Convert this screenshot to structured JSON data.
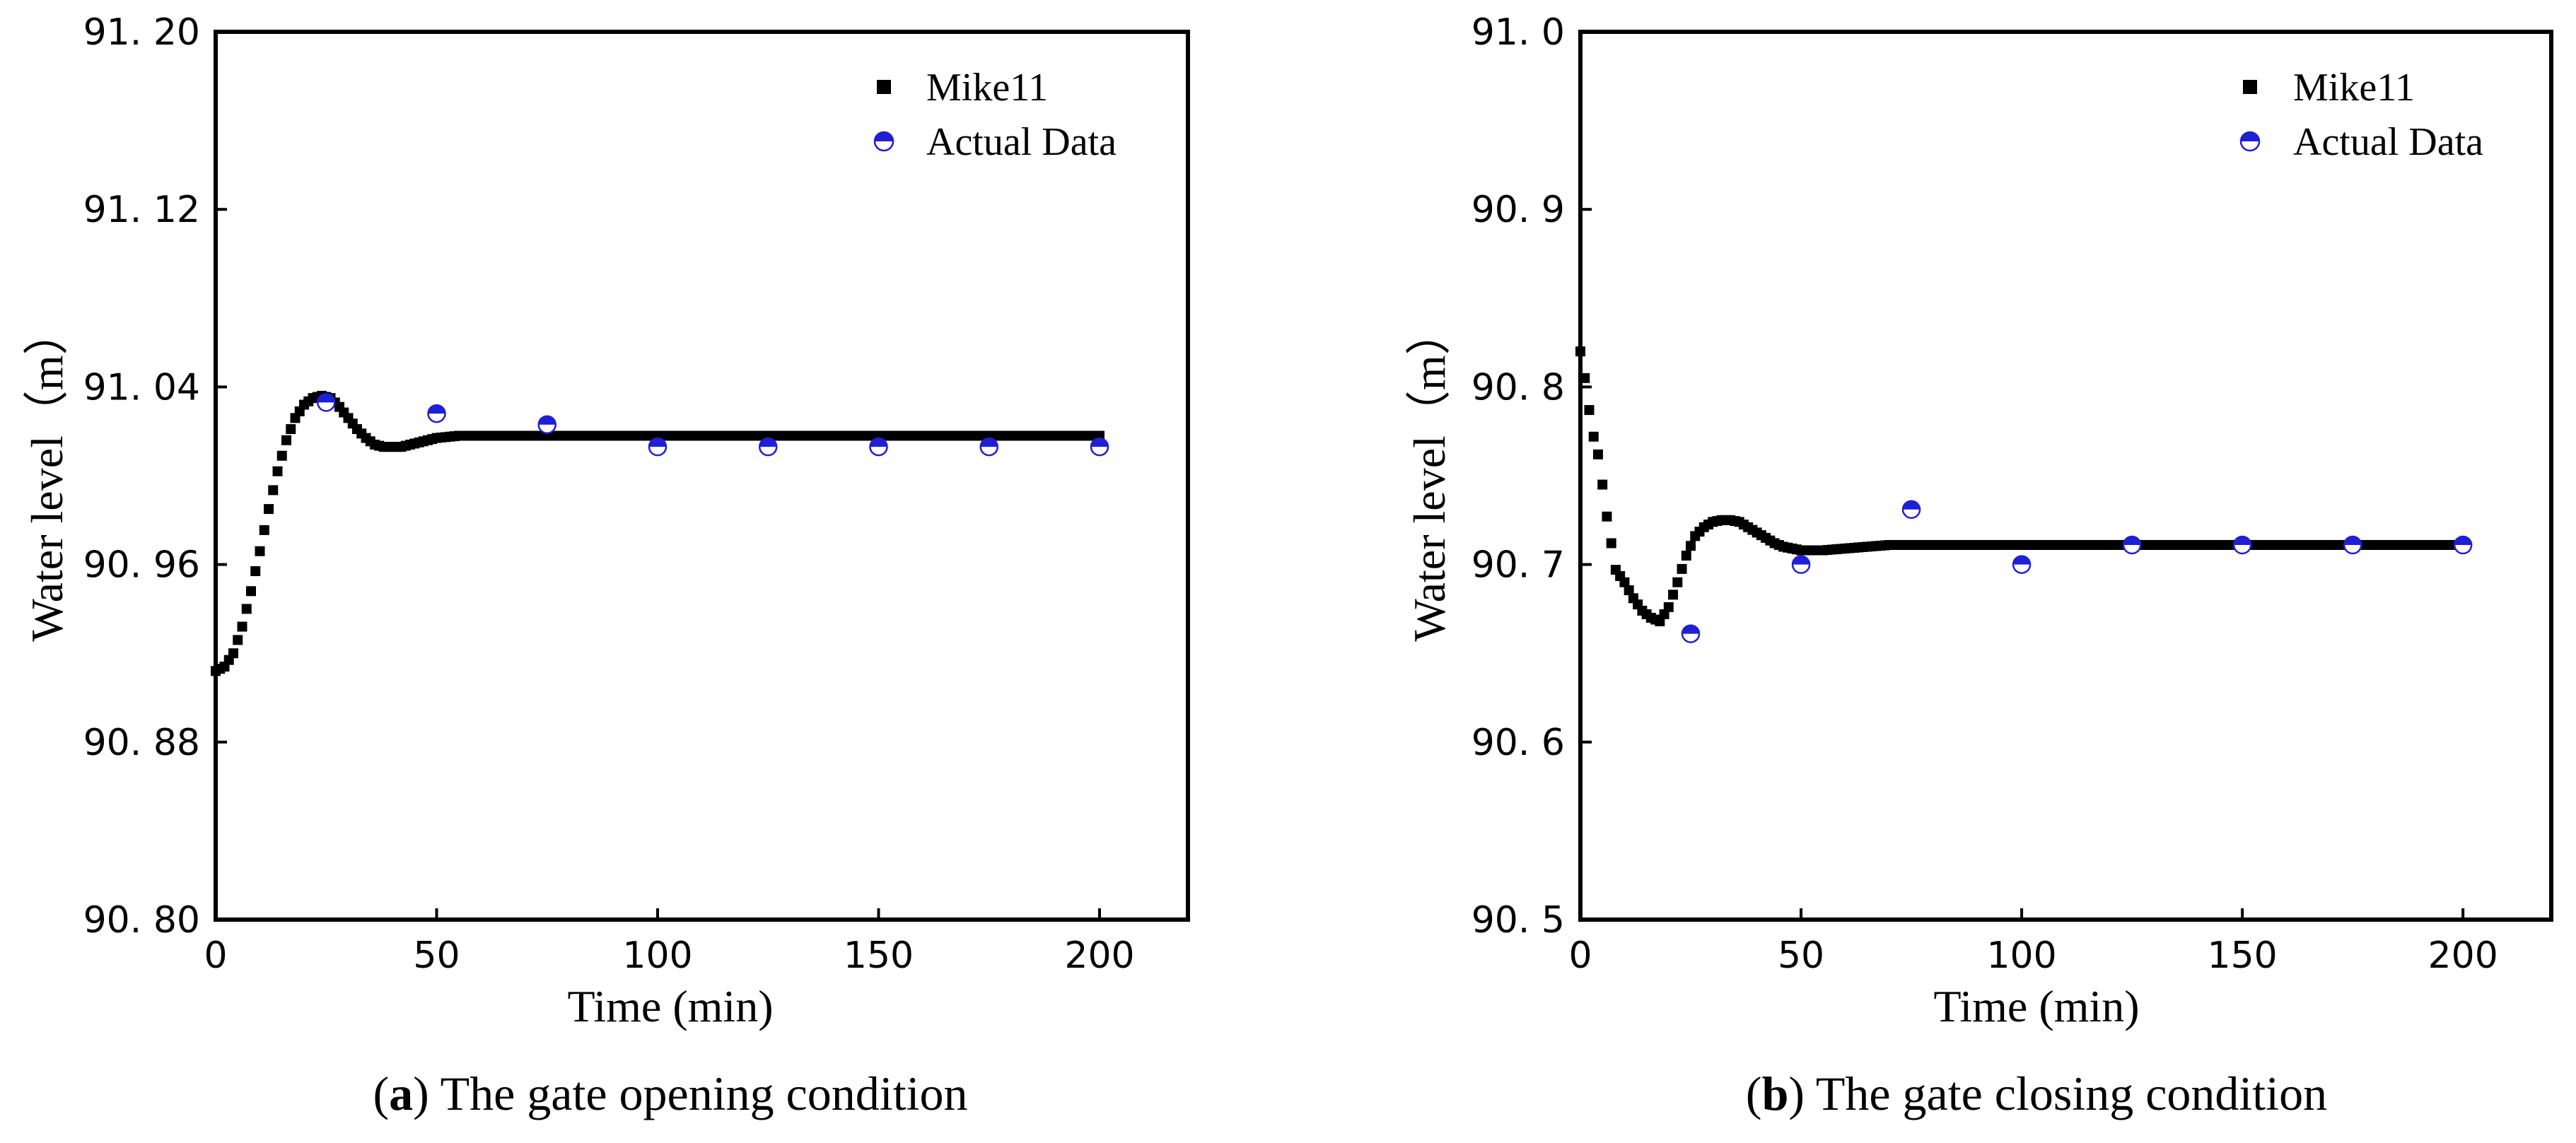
{
  "chart_data": [
    {
      "type": "scatter",
      "panel_letter": "a",
      "caption": "The gate opening condition",
      "xlabel": "Time (min)",
      "ylabel": "Water level（m）",
      "xlim": [
        0,
        220
      ],
      "ylim": [
        90.8,
        91.2
      ],
      "xticks": [
        0,
        50,
        100,
        150,
        200
      ],
      "xtick_labels": [
        "0",
        "50",
        "100",
        "150",
        "200"
      ],
      "yticks": [
        90.8,
        90.88,
        90.96,
        91.04,
        91.12,
        91.2
      ],
      "ytick_labels": [
        "90. 80",
        "90. 88",
        "90. 96",
        "91. 04",
        "91. 12",
        "91. 20"
      ],
      "legend_position": "top-right",
      "series": [
        {
          "name": "Mike11",
          "marker": "square",
          "color": "#000000",
          "step": 1,
          "x": [
            0,
            2,
            4,
            6,
            8,
            10,
            12,
            14,
            16,
            18,
            20,
            22,
            24,
            26,
            28,
            30,
            32,
            34,
            36,
            38,
            40,
            42,
            44,
            46,
            48,
            50,
            55,
            60,
            70,
            80,
            100,
            120,
            140,
            160,
            180,
            200
          ],
          "values": [
            90.912,
            90.914,
            90.92,
            90.932,
            90.948,
            90.966,
            90.985,
            91.002,
            91.016,
            91.026,
            91.032,
            91.035,
            91.036,
            91.035,
            91.031,
            91.026,
            91.021,
            91.017,
            91.014,
            91.013,
            91.013,
            91.013,
            91.014,
            91.015,
            91.016,
            91.017,
            91.018,
            91.018,
            91.018,
            91.018,
            91.018,
            91.018,
            91.018,
            91.018,
            91.018,
            91.018
          ]
        },
        {
          "name": "Actual Data",
          "marker": "half-filled-circle",
          "color": "#1f1fd6",
          "x": [
            25,
            50,
            75,
            100,
            125,
            150,
            175,
            200
          ],
          "values": [
            91.033,
            91.028,
            91.023,
            91.013,
            91.013,
            91.013,
            91.013,
            91.013
          ]
        }
      ]
    },
    {
      "type": "scatter",
      "panel_letter": "b",
      "caption": "The gate closing condition",
      "xlabel": "Time (min)",
      "ylabel": "Water level（m）",
      "xlim": [
        0,
        220
      ],
      "ylim": [
        90.5,
        91.0
      ],
      "xticks": [
        0,
        50,
        100,
        150,
        200
      ],
      "xtick_labels": [
        "0",
        "50",
        "100",
        "150",
        "200"
      ],
      "yticks": [
        90.5,
        90.6,
        90.7,
        90.8,
        90.9,
        91.0
      ],
      "ytick_labels": [
        "90. 5",
        "90. 6",
        "90. 7",
        "90. 8",
        "90. 9",
        "91. 0"
      ],
      "legend_position": "top-right",
      "series": [
        {
          "name": "Mike11",
          "marker": "square",
          "color": "#000000",
          "step": 1,
          "x": [
            0,
            1,
            2,
            3,
            4,
            5,
            6,
            7,
            8,
            10,
            12,
            14,
            16,
            18,
            20,
            22,
            24,
            26,
            28,
            30,
            32,
            34,
            36,
            38,
            40,
            42,
            44,
            46,
            48,
            50,
            55,
            60,
            70,
            80,
            100,
            120,
            140,
            160,
            180,
            200
          ],
          "values": [
            90.82,
            90.805,
            90.787,
            90.772,
            90.762,
            90.745,
            90.727,
            90.712,
            90.697,
            90.69,
            90.681,
            90.674,
            90.67,
            90.668,
            90.676,
            90.69,
            90.705,
            90.716,
            90.721,
            90.724,
            90.725,
            90.725,
            90.724,
            90.721,
            90.718,
            90.715,
            90.712,
            90.71,
            90.709,
            90.708,
            90.708,
            90.709,
            90.711,
            90.711,
            90.711,
            90.711,
            90.711,
            90.711,
            90.711,
            90.711
          ]
        },
        {
          "name": "Actual Data",
          "marker": "half-filled-circle",
          "color": "#1f1fd6",
          "x": [
            25,
            50,
            75,
            100,
            125,
            150,
            175,
            200
          ],
          "values": [
            90.661,
            90.7,
            90.731,
            90.7,
            90.711,
            90.711,
            90.711,
            90.711
          ]
        }
      ]
    }
  ]
}
